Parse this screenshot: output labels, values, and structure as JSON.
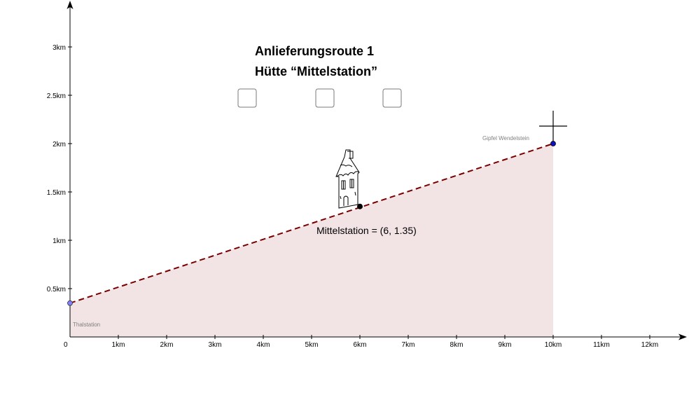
{
  "title": {
    "line1": "Anlieferungsroute 1",
    "line2": "Hütte “Mittelstation”"
  },
  "checkboxes": [
    {
      "checked": false
    },
    {
      "checked": false
    },
    {
      "checked": false
    }
  ],
  "axes": {
    "origin_label": "0",
    "x_ticks": [
      {
        "value": 1,
        "label": "1km"
      },
      {
        "value": 2,
        "label": "2km"
      },
      {
        "value": 3,
        "label": "3km"
      },
      {
        "value": 4,
        "label": "4km"
      },
      {
        "value": 5,
        "label": "5km"
      },
      {
        "value": 6,
        "label": "6km"
      },
      {
        "value": 7,
        "label": "7km"
      },
      {
        "value": 8,
        "label": "8km"
      },
      {
        "value": 9,
        "label": "9km"
      },
      {
        "value": 10,
        "label": "10km"
      },
      {
        "value": 11,
        "label": "11km"
      },
      {
        "value": 12,
        "label": "12km"
      }
    ],
    "y_ticks": [
      {
        "value": 0.5,
        "label": "0.5km"
      },
      {
        "value": 1,
        "label": "1km"
      },
      {
        "value": 1.5,
        "label": "1.5km"
      },
      {
        "value": 2,
        "label": "2km"
      },
      {
        "value": 2.5,
        "label": "2.5km"
      },
      {
        "value": 3,
        "label": "3km"
      }
    ],
    "x_range": [
      0,
      12.75
    ],
    "y_range": [
      0,
      3.45
    ]
  },
  "points": {
    "thalstation": {
      "label": "Thalstation",
      "x": 0,
      "y": 0.35
    },
    "gipfel": {
      "label": "Gipfel Wendelstein",
      "x": 10,
      "y": 2
    },
    "mittelstation": {
      "label": "Mittelstation = (6, 1.35)",
      "x": 6,
      "y": 1.35
    }
  },
  "colors": {
    "route_line": "#7a0000",
    "area_fill": "#f2e3e5",
    "thalstation_point": "#8080ff",
    "gipfel_point": "#1010c0",
    "mittelstation_point": "#000000",
    "axis": "#000000"
  },
  "icons": {
    "house": "house-icon",
    "summit_cross": "summit-cross-icon"
  }
}
